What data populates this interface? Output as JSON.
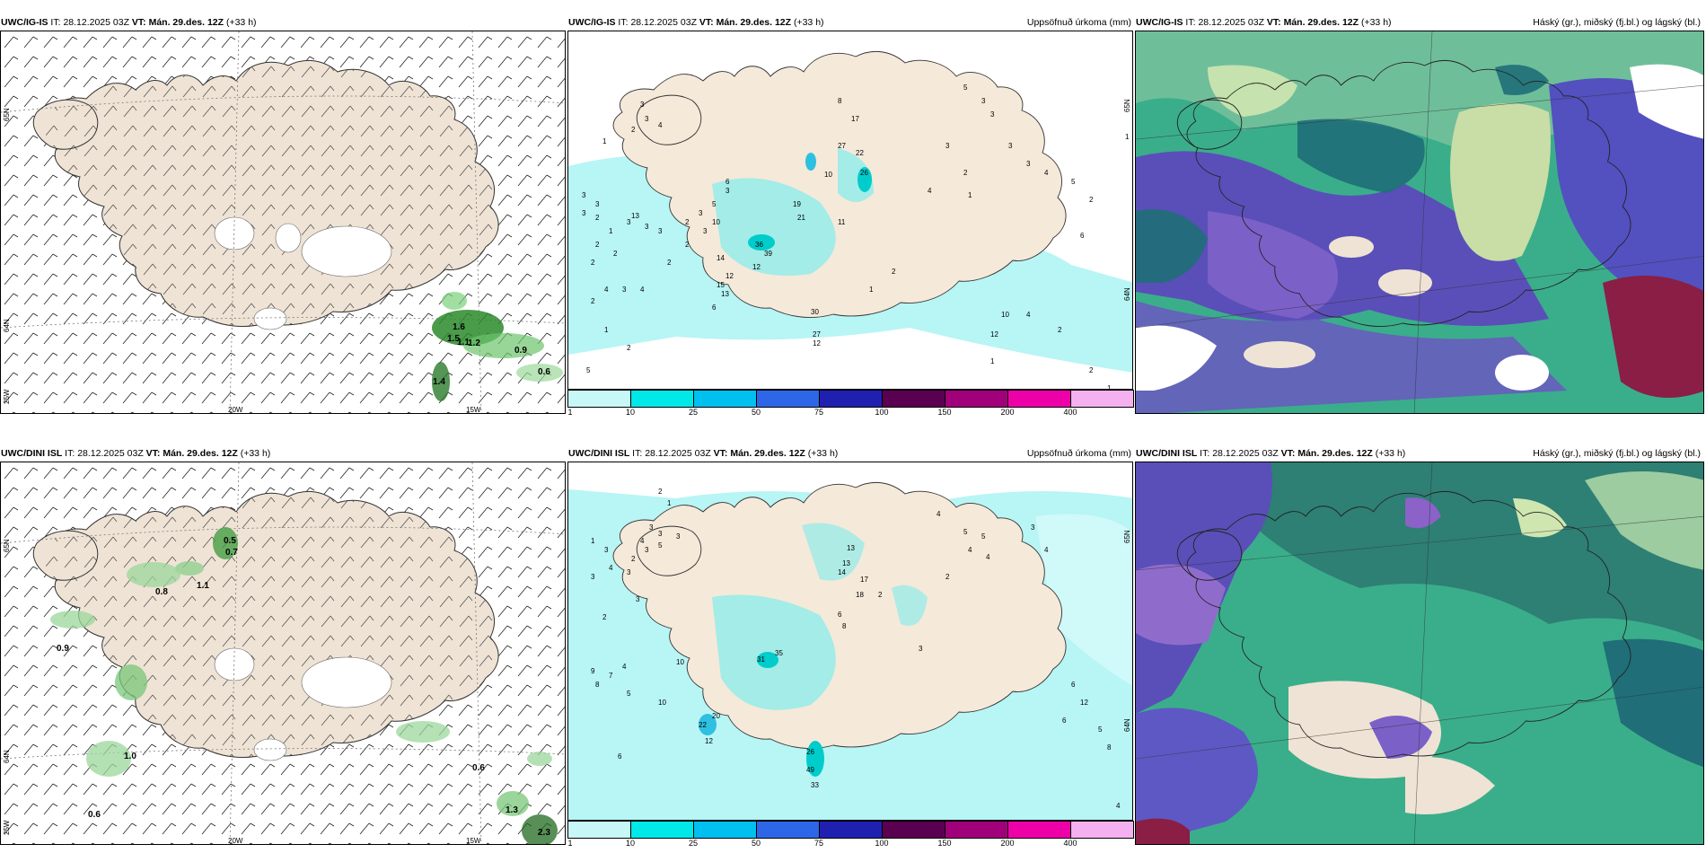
{
  "rows": [
    {
      "model": "UWC/IG-IS",
      "it": "28.12.2025 03Z",
      "vt": "Mán. 29.des. 12Z",
      "lead": "(+33 h)"
    },
    {
      "model": "UWC/DINI ISL",
      "it": "28.12.2025 03Z",
      "vt": "Mán. 29.des. 12Z",
      "lead": "(+33 h)"
    }
  ],
  "labels": {
    "it": "IT:",
    "vt": "VT:",
    "precip_title": "Uppsöfnuð úrkoma (mm)",
    "cloud_title": "Háský (gr.), miðský (fj.bl.) og lágský (bl.)"
  },
  "axes": {
    "lat_top": "65N",
    "lat_mid": "64N",
    "lat_bot": "25W",
    "lon_left": "20W",
    "lon_right": "15W",
    "prec_lat_top": "65N",
    "prec_lat_bot": "64N"
  },
  "colorbar": {
    "ticks": [
      "1",
      "10",
      "25",
      "50",
      "75",
      "100",
      "150",
      "200",
      "400"
    ],
    "colors": [
      "#c8f7f7",
      "#00e8e8",
      "#00c0f0",
      "#2e66e8",
      "#2020b0",
      "#5a0050",
      "#a0007a",
      "#ee00a8",
      "#f5b0f0"
    ]
  },
  "wind_maxima": {
    "top": [
      "1.6",
      "1.5",
      "1.1",
      "1.2",
      "0.9",
      "0.6",
      "1.4"
    ],
    "bottom": [
      "0.5",
      "0.7",
      "0.8",
      "1.1",
      "0.9",
      "1.0",
      "0.6",
      "0.6",
      "1.3",
      "2.3"
    ]
  },
  "precip_values": {
    "top": [
      "1",
      "3",
      "3",
      "4",
      "2",
      "3",
      "2",
      "1",
      "3",
      "3",
      "3",
      "3",
      "3",
      "2",
      "2",
      "2",
      "4",
      "3",
      "4",
      "2",
      "5",
      "2",
      "1",
      "2",
      "2",
      "5",
      "3",
      "2",
      "3",
      "3",
      "10",
      "13",
      "14",
      "12",
      "12",
      "15",
      "13",
      "6",
      "6",
      "19",
      "21",
      "36",
      "39",
      "30",
      "27",
      "8",
      "17",
      "27",
      "22",
      "26",
      "11",
      "12",
      "10",
      "1",
      "2",
      "4",
      "3",
      "2",
      "1",
      "12",
      "10",
      "4",
      "2",
      "2",
      "1",
      "1",
      "5",
      "3",
      "3",
      "3",
      "3",
      "4",
      "5",
      "2",
      "6",
      "1"
    ],
    "bottom": [
      "2",
      "1",
      "3",
      "3",
      "4",
      "3",
      "5",
      "3",
      "2",
      "4",
      "3",
      "3",
      "1",
      "3",
      "2",
      "3",
      "9",
      "7",
      "4",
      "8",
      "5",
      "6",
      "10",
      "10",
      "12",
      "22",
      "20",
      "31",
      "35",
      "26",
      "49",
      "33",
      "13",
      "14",
      "17",
      "18",
      "8",
      "6",
      "13",
      "2",
      "4",
      "5",
      "5",
      "4",
      "4",
      "2",
      "3",
      "3",
      "4",
      "6",
      "12",
      "6",
      "8",
      "5",
      "4"
    ]
  }
}
